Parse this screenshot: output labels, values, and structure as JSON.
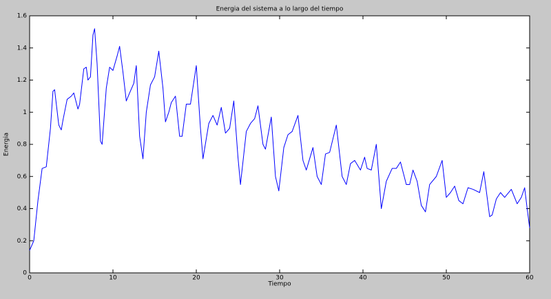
{
  "chart_data": {
    "type": "line",
    "title": "Energia del sistema a lo largo del tiempo",
    "xlabel": "Tiempo",
    "ylabel": "Energia",
    "xlim": [
      0,
      60
    ],
    "ylim": [
      0,
      1.6
    ],
    "xticks": [
      0,
      10,
      20,
      30,
      40,
      50,
      60
    ],
    "yticks": [
      0,
      0.2,
      0.4,
      0.6,
      0.8,
      1,
      1.2,
      1.4,
      1.6
    ],
    "series": [
      {
        "color": "#0000ff",
        "x": [
          0,
          0.5,
          1,
          1.5,
          2,
          2.5,
          2.8,
          3,
          3.5,
          3.8,
          4,
          4.5,
          5,
          5.3,
          5.8,
          6,
          6.5,
          6.8,
          7,
          7.3,
          7.6,
          7.8,
          8.1,
          8.5,
          8.7,
          9.2,
          9.6,
          10,
          10.5,
          10.8,
          11.2,
          11.6,
          12,
          12.5,
          12.8,
          13.2,
          13.6,
          14,
          14.5,
          15,
          15.5,
          16,
          16.3,
          16.7,
          17,
          17.5,
          18,
          18.3,
          18.8,
          19.3,
          20,
          20.5,
          20.8,
          21.5,
          22,
          22.5,
          23,
          23.5,
          24,
          24.5,
          25,
          25.3,
          26,
          26.5,
          27,
          27.4,
          28,
          28.3,
          29,
          29.5,
          29.9,
          30.5,
          31,
          31.5,
          32.2,
          32.8,
          33.2,
          34,
          34.5,
          35,
          35.5,
          36,
          36.8,
          37.5,
          38,
          38.5,
          39,
          39.7,
          40.2,
          40.5,
          41,
          41.6,
          42.2,
          42.8,
          43.5,
          44,
          44.5,
          45.2,
          45.6,
          46,
          46.5,
          47,
          47.5,
          48,
          48.8,
          49.5,
          50,
          50.5,
          51,
          51.5,
          52,
          52.6,
          53.2,
          54,
          54.5,
          55.2,
          55.5,
          56,
          56.5,
          57,
          57.8,
          58.5,
          59,
          59.4,
          59.7,
          60
        ],
        "values": [
          0.14,
          0.2,
          0.45,
          0.65,
          0.66,
          0.9,
          1.13,
          1.14,
          0.92,
          0.89,
          0.95,
          1.08,
          1.1,
          1.12,
          1.02,
          1.05,
          1.27,
          1.28,
          1.2,
          1.22,
          1.48,
          1.52,
          1.3,
          0.82,
          0.8,
          1.15,
          1.28,
          1.26,
          1.35,
          1.41,
          1.25,
          1.07,
          1.12,
          1.18,
          1.29,
          0.85,
          0.71,
          1.0,
          1.17,
          1.22,
          1.38,
          1.15,
          0.94,
          1.0,
          1.06,
          1.1,
          0.85,
          0.85,
          1.05,
          1.05,
          1.29,
          0.9,
          0.71,
          0.93,
          0.98,
          0.92,
          1.03,
          0.87,
          0.9,
          1.07,
          0.72,
          0.55,
          0.88,
          0.93,
          0.96,
          1.04,
          0.8,
          0.77,
          0.97,
          0.6,
          0.51,
          0.78,
          0.86,
          0.88,
          0.98,
          0.7,
          0.64,
          0.78,
          0.6,
          0.55,
          0.74,
          0.75,
          0.92,
          0.6,
          0.55,
          0.68,
          0.7,
          0.64,
          0.72,
          0.65,
          0.64,
          0.8,
          0.4,
          0.57,
          0.65,
          0.65,
          0.69,
          0.55,
          0.55,
          0.64,
          0.57,
          0.42,
          0.38,
          0.55,
          0.6,
          0.7,
          0.47,
          0.5,
          0.54,
          0.45,
          0.43,
          0.53,
          0.52,
          0.5,
          0.63,
          0.35,
          0.36,
          0.46,
          0.5,
          0.47,
          0.52,
          0.43,
          0.47,
          0.53,
          0.4,
          0.28
        ]
      }
    ]
  }
}
